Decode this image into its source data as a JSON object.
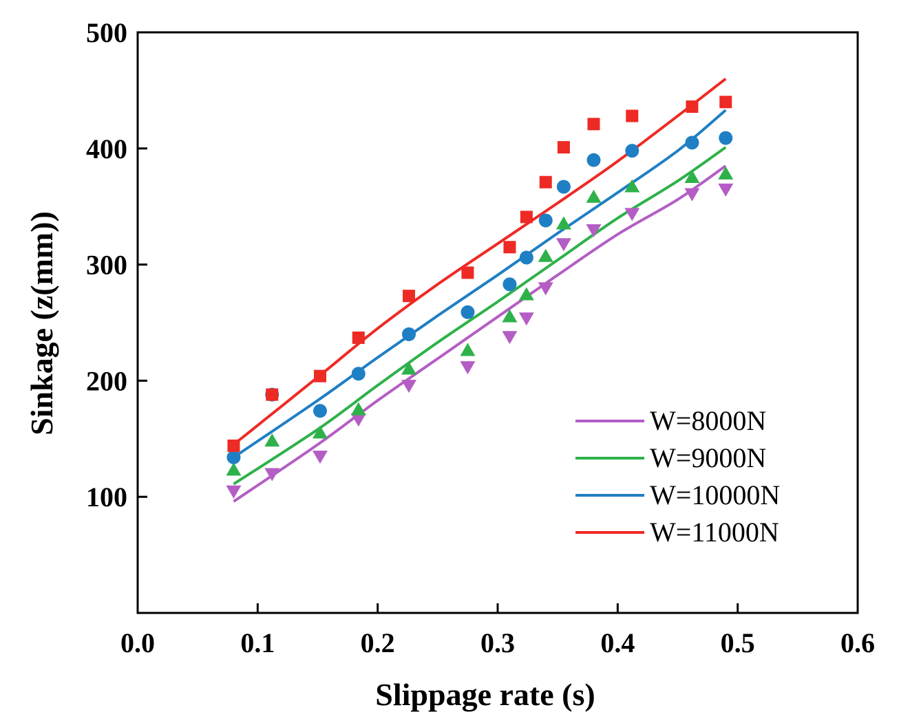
{
  "chart_data": {
    "type": "scatter",
    "title": "",
    "xlabel": "Slippage rate (s)",
    "ylabel": "Sinkage (z(mm))",
    "xlim": [
      0.0,
      0.6
    ],
    "ylim": [
      0,
      500
    ],
    "xticks": [
      "0.0",
      "0.1",
      "0.2",
      "0.3",
      "0.4",
      "0.5",
      "0.6"
    ],
    "yticks": [
      "100",
      "200",
      "300",
      "400",
      "500"
    ],
    "xtick_values": [
      0.0,
      0.1,
      0.2,
      0.3,
      0.4,
      0.5,
      0.6
    ],
    "ytick_values": [
      100,
      200,
      300,
      400,
      500
    ],
    "legend_position": "bottom-right",
    "series": [
      {
        "name": "W=8000N",
        "color": "#B45DC4",
        "marker": "triangle-down",
        "x": [
          0.08,
          0.112,
          0.152,
          0.184,
          0.226,
          0.275,
          0.31,
          0.324,
          0.34,
          0.355,
          0.38,
          0.412,
          0.462,
          0.49
        ],
        "y": [
          105,
          120,
          135,
          167,
          196,
          212,
          238,
          254,
          280,
          318,
          330,
          344,
          361,
          365
        ],
        "fit": {
          "x": [
            0.08,
            0.15,
            0.2,
            0.25,
            0.3,
            0.35,
            0.4,
            0.45,
            0.49
          ],
          "y": [
            96,
            145,
            183,
            219,
            255,
            291,
            326,
            356,
            385
          ]
        }
      },
      {
        "name": "W=9000N",
        "color": "#2EB14A",
        "marker": "triangle-up",
        "x": [
          0.08,
          0.112,
          0.152,
          0.184,
          0.226,
          0.275,
          0.31,
          0.324,
          0.34,
          0.355,
          0.38,
          0.412,
          0.462,
          0.49
        ],
        "y": [
          123,
          148,
          155,
          175,
          210,
          226,
          255,
          274,
          307,
          335,
          358,
          367,
          375,
          378
        ],
        "fit": {
          "x": [
            0.08,
            0.15,
            0.2,
            0.25,
            0.3,
            0.35,
            0.4,
            0.45,
            0.49
          ],
          "y": [
            111,
            158,
            196,
            233,
            268,
            304,
            340,
            372,
            401
          ]
        }
      },
      {
        "name": "W=10000N",
        "color": "#1F7FC4",
        "marker": "circle",
        "x": [
          0.08,
          0.112,
          0.152,
          0.184,
          0.226,
          0.275,
          0.31,
          0.324,
          0.34,
          0.355,
          0.38,
          0.412,
          0.462,
          0.49
        ],
        "y": [
          134,
          188,
          174,
          206,
          240,
          259,
          283,
          306,
          338,
          367,
          390,
          398,
          405,
          409
        ],
        "fit": {
          "x": [
            0.08,
            0.15,
            0.2,
            0.25,
            0.3,
            0.35,
            0.4,
            0.45,
            0.49
          ],
          "y": [
            134,
            183,
            220,
            256,
            291,
            327,
            362,
            398,
            433
          ]
        }
      },
      {
        "name": "W=11000N",
        "color": "#EE2A24",
        "marker": "square",
        "x": [
          0.08,
          0.112,
          0.152,
          0.184,
          0.226,
          0.275,
          0.31,
          0.324,
          0.34,
          0.355,
          0.38,
          0.412,
          0.462,
          0.49
        ],
        "y": [
          144,
          188,
          204,
          237,
          273,
          293,
          315,
          341,
          371,
          401,
          421,
          428,
          436,
          440
        ],
        "fit": {
          "x": [
            0.08,
            0.15,
            0.2,
            0.25,
            0.3,
            0.35,
            0.4,
            0.45,
            0.49
          ],
          "y": [
            145,
            203,
            245,
            283,
            318,
            353,
            389,
            428,
            460
          ]
        }
      }
    ]
  }
}
